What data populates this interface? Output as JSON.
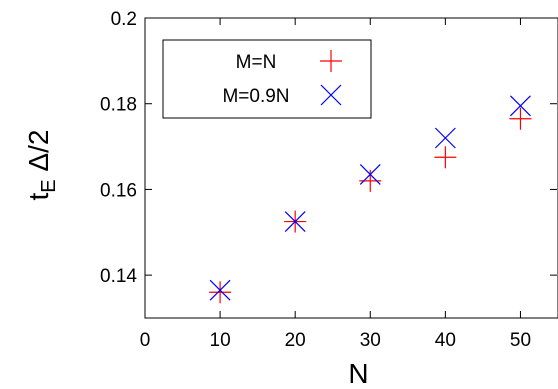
{
  "chart_data": {
    "type": "scatter",
    "xlabel": "N",
    "ylabel_main": "t",
    "ylabel_sub": "E",
    "ylabel_rest": " Δ/2",
    "xlim": [
      0,
      55
    ],
    "ylim": [
      0.13,
      0.2
    ],
    "xticks": [
      0,
      10,
      20,
      30,
      40,
      50
    ],
    "yticks": [
      0.14,
      0.16,
      0.18,
      0.2
    ],
    "ytick_labels": [
      "0.14",
      "0.16",
      "0.18",
      "0.2"
    ],
    "grid": false,
    "legend_position": "top-left",
    "series": [
      {
        "name": "M=N",
        "marker": "plus",
        "color": "#ff0000",
        "x": [
          10,
          20,
          30,
          40,
          50
        ],
        "y": [
          0.136,
          0.1525,
          0.162,
          0.1675,
          0.1765
        ]
      },
      {
        "name": "M=0.9N",
        "marker": "cross",
        "color": "#0000ff",
        "x": [
          10,
          20,
          30,
          40,
          50
        ],
        "y": [
          0.1365,
          0.1525,
          0.1635,
          0.172,
          0.1795
        ]
      }
    ]
  }
}
